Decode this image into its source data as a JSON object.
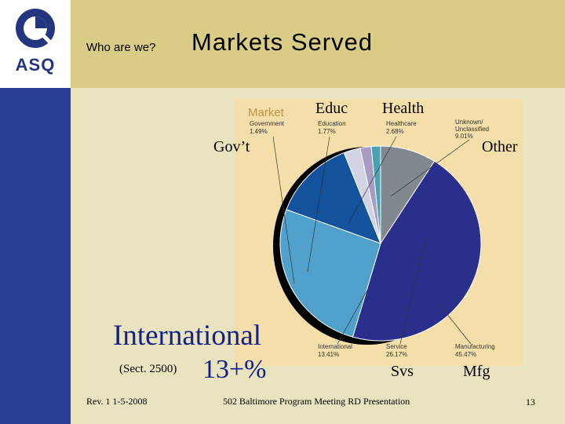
{
  "logo": {
    "text": "ASQ"
  },
  "header": {
    "kicker": "Who are we?",
    "title": "Markets Served"
  },
  "chart_data": {
    "type": "pie",
    "title": "Market",
    "slices": [
      {
        "label": "Unknown/ Unclassified",
        "value": 9.01,
        "color": "#828890"
      },
      {
        "label": "Manufacturing",
        "value": 45.47,
        "color": "#2a2f8c"
      },
      {
        "label": "Service",
        "value": 26.17,
        "color": "#4fa1cb"
      },
      {
        "label": "International",
        "value": 13.41,
        "color": "#13529c"
      },
      {
        "label": "Healthcare",
        "value": 2.68,
        "color": "#d3d3e6"
      },
      {
        "label": "Education",
        "value": 1.77,
        "color": "#a89cc6"
      },
      {
        "label": "Government",
        "value": 1.49,
        "color": "#47a3b1"
      }
    ],
    "pct_labels": [
      "9.01%",
      "45.47%",
      "26.17%",
      "13.41%",
      "2.68%",
      "1.77%",
      "1.49%"
    ],
    "card_labels": [
      "Unknown/",
      "Unclassified",
      "Manufacturing",
      "Service",
      "International",
      "Healthcare",
      "Education",
      "Government"
    ]
  },
  "callouts": {
    "educ": "Educ",
    "health": "Health",
    "govt": "Gov’t",
    "other": "Other",
    "international": "International",
    "sect": "(Sect. 2500)",
    "international_pct": "13+%",
    "svs": "Svs",
    "mfg": "Mfg"
  },
  "footer": {
    "rev": "Rev. 1 1-5-2008",
    "meeting": "502 Baltimore Program Meeting RD Presentation",
    "page": "13"
  }
}
